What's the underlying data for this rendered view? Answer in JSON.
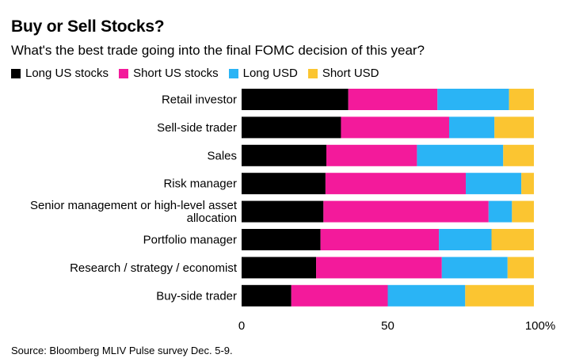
{
  "chart_data": {
    "type": "bar",
    "orientation": "horizontal",
    "stacked": true,
    "title": "Buy or Sell Stocks?",
    "subtitle": "What's the best trade going into the final FOMC decision of this year?",
    "categories": [
      "Retail investor",
      "Sell-side trader",
      "Sales",
      "Risk manager",
      "Senior management or high-level asset allocation",
      "Portfolio manager",
      "Research / strategy / economist",
      "Buy-side trader"
    ],
    "category_lines": [
      [
        "Retail investor"
      ],
      [
        "Sell-side trader"
      ],
      [
        "Sales"
      ],
      [
        "Risk manager"
      ],
      [
        "Senior management or high-level asset",
        "allocation"
      ],
      [
        "Portfolio manager"
      ],
      [
        "Research / strategy / economist"
      ],
      [
        "Buy-side trader"
      ]
    ],
    "series": [
      {
        "name": "Long US stocks",
        "color": "#000000",
        "values": [
          36.5,
          34,
          29,
          28.7,
          28,
          27,
          25.5,
          17
        ]
      },
      {
        "name": "Short US stocks",
        "color": "#f31a9b",
        "values": [
          30.5,
          37,
          31,
          48,
          56.5,
          40.5,
          43,
          33
        ]
      },
      {
        "name": "Long USD",
        "color": "#2ab4f5",
        "values": [
          24.5,
          15.5,
          29.5,
          19,
          8,
          18,
          22.5,
          26.5
        ]
      },
      {
        "name": "Short USD",
        "color": "#fbc531",
        "values": [
          8.5,
          13.5,
          10.5,
          4.3,
          7.5,
          14.5,
          9,
          23.5
        ]
      }
    ],
    "xlim": [
      0,
      100
    ],
    "xticks": [
      0,
      50,
      100
    ],
    "xtick_labels": [
      "0",
      "50",
      "100%"
    ],
    "xlabel": "",
    "ylabel": "",
    "grid": false,
    "legend_position": "top-left"
  },
  "source": "Source: Bloomberg MLIV Pulse survey Dec. 5-9."
}
